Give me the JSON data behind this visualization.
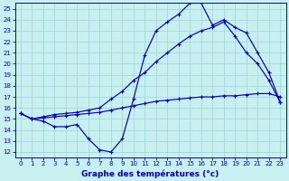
{
  "title": "Graphe des températures (°c)",
  "bg_color": "#c8f0f0",
  "grid_color": "#a8d8d8",
  "line_color": "#0000bb",
  "xlim": [
    -0.5,
    23.5
  ],
  "ylim": [
    11.5,
    25.5
  ],
  "yticks": [
    12,
    13,
    14,
    15,
    16,
    17,
    18,
    19,
    20,
    21,
    22,
    23,
    24,
    25
  ],
  "xticks": [
    0,
    1,
    2,
    3,
    4,
    5,
    6,
    7,
    8,
    9,
    10,
    11,
    12,
    13,
    14,
    15,
    16,
    17,
    18,
    19,
    20,
    21,
    22,
    23
  ],
  "curve1_x": [
    0,
    1,
    2,
    3,
    4,
    5,
    6,
    7,
    8,
    9,
    10,
    11,
    12,
    13,
    14,
    15,
    16,
    17,
    18,
    19,
    20,
    21,
    22,
    23
  ],
  "curve1_y": [
    15.5,
    15.0,
    14.8,
    14.3,
    14.3,
    14.5,
    13.2,
    12.2,
    12.0,
    13.2,
    16.8,
    20.8,
    23.0,
    23.8,
    24.5,
    25.5,
    25.5,
    23.5,
    24.0,
    23.3,
    22.8,
    21.0,
    19.2,
    16.5
  ],
  "curve2_x": [
    0,
    1,
    2,
    3,
    4,
    5,
    6,
    7,
    8,
    9,
    10,
    11,
    12,
    13,
    14,
    15,
    16,
    17,
    18,
    19,
    20,
    21,
    22,
    23
  ],
  "curve2_y": [
    15.5,
    15.0,
    15.2,
    15.4,
    15.5,
    15.6,
    15.8,
    16.0,
    16.8,
    17.5,
    18.5,
    19.2,
    20.2,
    21.0,
    21.8,
    22.5,
    23.0,
    23.3,
    23.8,
    22.5,
    21.0,
    20.0,
    18.5,
    16.5
  ],
  "curve3_x": [
    0,
    1,
    2,
    3,
    4,
    5,
    6,
    7,
    8,
    9,
    10,
    11,
    12,
    13,
    14,
    15,
    16,
    17,
    18,
    19,
    20,
    21,
    22,
    23
  ],
  "curve3_y": [
    15.5,
    15.0,
    15.1,
    15.2,
    15.3,
    15.4,
    15.5,
    15.6,
    15.8,
    16.0,
    16.2,
    16.4,
    16.6,
    16.7,
    16.8,
    16.9,
    17.0,
    17.0,
    17.1,
    17.1,
    17.2,
    17.3,
    17.3,
    17.0
  ]
}
